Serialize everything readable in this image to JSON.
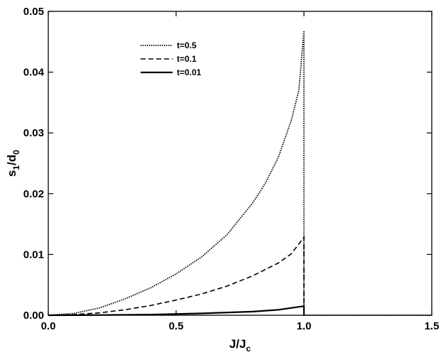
{
  "chart_data": {
    "type": "line",
    "title": "",
    "xlabel": {
      "main": "J/J",
      "sub": "c"
    },
    "ylabel": {
      "part1": "s",
      "sub1": "1",
      "part2": "/d",
      "sub2": "0"
    },
    "xlim": [
      0,
      1.5
    ],
    "ylim": [
      0,
      0.05
    ],
    "xticks": [
      0.0,
      0.5,
      1.0,
      1.5
    ],
    "yticks": [
      0.0,
      0.01,
      0.02,
      0.03,
      0.04,
      0.05
    ],
    "xtick_labels": [
      "0.0",
      "0.5",
      "1.0",
      "1.5"
    ],
    "ytick_labels": [
      "0.00",
      "0.01",
      "0.02",
      "0.03",
      "0.04",
      "0.05"
    ],
    "grid": false,
    "legend_position": "upper-left",
    "series": [
      {
        "name": "t=0.5",
        "style": "dotted",
        "x": [
          0.0,
          0.1,
          0.2,
          0.3,
          0.4,
          0.5,
          0.6,
          0.7,
          0.8,
          0.85,
          0.9,
          0.95,
          0.98,
          1.0,
          1.0,
          1.5
        ],
        "y": [
          0.0,
          0.0003,
          0.0012,
          0.0027,
          0.0045,
          0.0068,
          0.0096,
          0.0133,
          0.0185,
          0.0218,
          0.026,
          0.032,
          0.037,
          0.0468,
          0.0,
          0.0
        ]
      },
      {
        "name": "t=0.1",
        "style": "dashed",
        "x": [
          0.0,
          0.1,
          0.2,
          0.3,
          0.4,
          0.5,
          0.6,
          0.7,
          0.8,
          0.9,
          0.95,
          1.0,
          1.0
        ],
        "y": [
          0.0,
          0.0001,
          0.0004,
          0.0009,
          0.0016,
          0.0025,
          0.0035,
          0.0048,
          0.0065,
          0.0086,
          0.0101,
          0.0128,
          0.0
        ]
      },
      {
        "name": "t=0.01",
        "style": "solid",
        "x": [
          0.0,
          0.2,
          0.4,
          0.6,
          0.8,
          0.9,
          1.0,
          1.0
        ],
        "y": [
          0.0,
          3e-05,
          0.0001,
          0.0003,
          0.0006,
          0.0009,
          0.0015,
          0.0
        ]
      }
    ]
  }
}
